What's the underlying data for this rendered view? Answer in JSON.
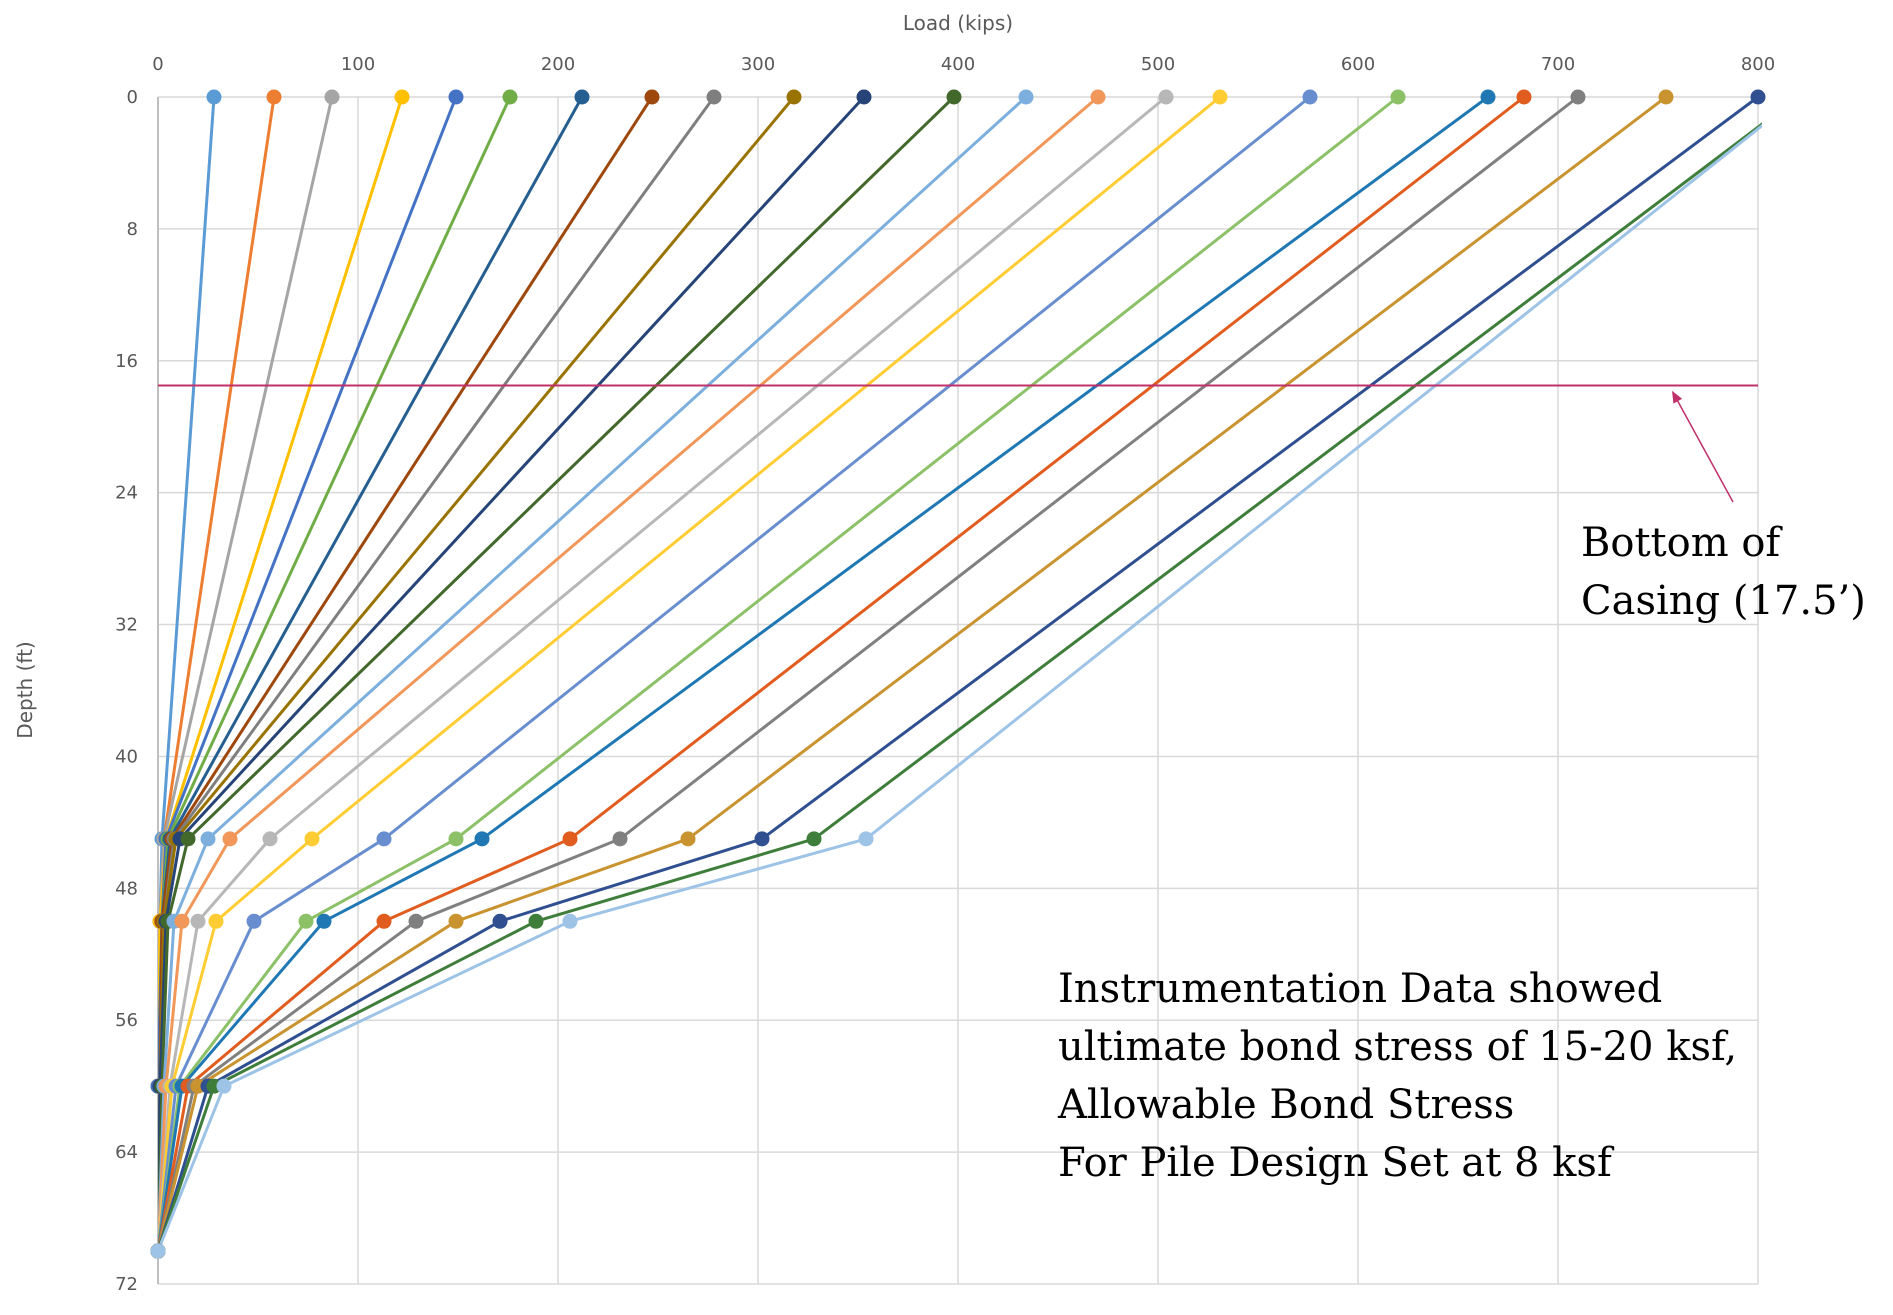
{
  "chart_data": {
    "type": "line",
    "xlabel": "Load (kips)",
    "ylabel": "Depth (ft)",
    "xlim": [
      0,
      800
    ],
    "ylim": [
      0,
      72
    ],
    "x_ticks": [
      0,
      100,
      200,
      300,
      400,
      500,
      600,
      700,
      800
    ],
    "y_ticks": [
      0,
      8,
      16,
      24,
      32,
      40,
      48,
      56,
      64,
      72
    ],
    "x_axis_position": "top",
    "y_axis_reversed": true,
    "grid": true,
    "depths": [
      0,
      45,
      50,
      60,
      70
    ],
    "series": [
      {
        "color": "#5B9BD5",
        "loads": [
          28,
          2,
          1,
          0,
          0
        ]
      },
      {
        "color": "#ED7D31",
        "loads": [
          58,
          3,
          1,
          0,
          0
        ]
      },
      {
        "color": "#A5A5A5",
        "loads": [
          87,
          3,
          1,
          0,
          0
        ]
      },
      {
        "color": "#FFC000",
        "loads": [
          122,
          4,
          1,
          0,
          0
        ]
      },
      {
        "color": "#4472C4",
        "loads": [
          149,
          4,
          2,
          0,
          0
        ]
      },
      {
        "color": "#70AD47",
        "loads": [
          176,
          5,
          2,
          1,
          0
        ]
      },
      {
        "color": "#255E91",
        "loads": [
          212,
          6,
          2,
          1,
          0
        ]
      },
      {
        "color": "#9E480E",
        "loads": [
          247,
          7,
          2,
          1,
          0
        ]
      },
      {
        "color": "#7F7F7F",
        "loads": [
          278,
          8,
          3,
          1,
          0
        ]
      },
      {
        "color": "#997300",
        "loads": [
          318,
          9,
          3,
          1,
          0
        ]
      },
      {
        "color": "#264478",
        "loads": [
          353,
          11,
          4,
          1,
          0
        ]
      },
      {
        "color": "#43682B",
        "loads": [
          398,
          15,
          5,
          2,
          0
        ]
      },
      {
        "color": "#7CAFDD",
        "loads": [
          434,
          25,
          8,
          3,
          0
        ]
      },
      {
        "color": "#F1975A",
        "loads": [
          470,
          36,
          12,
          4,
          0
        ]
      },
      {
        "color": "#B7B7B7",
        "loads": [
          504,
          56,
          20,
          6,
          0
        ]
      },
      {
        "color": "#FFCD33",
        "loads": [
          531,
          77,
          29,
          7,
          0
        ]
      },
      {
        "color": "#698ED0",
        "loads": [
          576,
          113,
          48,
          9,
          0
        ]
      },
      {
        "color": "#8CC168",
        "loads": [
          620,
          149,
          74,
          11,
          0
        ]
      },
      {
        "color": "#1F78B4",
        "loads": [
          665,
          162,
          83,
          12,
          0
        ]
      },
      {
        "color": "#E15D1F",
        "loads": [
          683,
          206,
          113,
          15,
          0
        ]
      },
      {
        "color": "#808080",
        "loads": [
          710,
          231,
          129,
          18,
          0
        ]
      },
      {
        "color": "#C9932F",
        "loads": [
          754,
          265,
          149,
          20,
          0
        ]
      },
      {
        "color": "#2F4F90",
        "loads": [
          800,
          302,
          171,
          25,
          0
        ]
      },
      {
        "color": "#3E7E3A",
        "loads": [
          820,
          328,
          189,
          28,
          0
        ]
      },
      {
        "color": "#9DC3E6",
        "loads": [
          820,
          354,
          206,
          33,
          0
        ]
      }
    ],
    "reference_line": {
      "depth": 17.5,
      "color": "#C0306A"
    },
    "annotation": {
      "lines": [
        "Bottom of",
        "Casing (17.5’)"
      ]
    },
    "note": {
      "lines": [
        "Instrumentation Data showed",
        "ultimate bond stress of 15-20 ksf,",
        "Allowable Bond Stress",
        "For Pile Design Set at 8 ksf"
      ]
    }
  }
}
